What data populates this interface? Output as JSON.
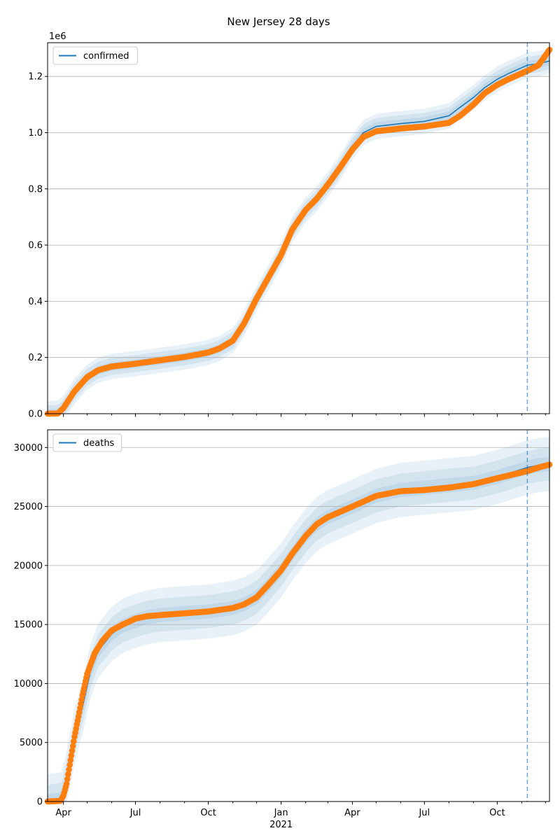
{
  "figure": {
    "title": "New Jersey 28 days"
  },
  "colors": {
    "model": "#1f77b4",
    "observed": "#ff7f0e",
    "band": "#1f77b4",
    "grid": "#b0b0b0",
    "vline": "#1f77b4"
  },
  "x_axis": {
    "domain": [
      "2020-03-12",
      "2021-12-06"
    ],
    "ticks": [
      {
        "date": "2020-04-01",
        "label": "Apr"
      },
      {
        "date": "2020-07-01",
        "label": "Jul"
      },
      {
        "date": "2020-10-01",
        "label": "Oct"
      },
      {
        "date": "2021-01-01",
        "label": "Jan"
      },
      {
        "date": "2021-04-01",
        "label": "Apr"
      },
      {
        "date": "2021-07-01",
        "label": "Jul"
      },
      {
        "date": "2021-10-01",
        "label": "Oct"
      }
    ],
    "minor_ticks": [
      "2020-05-01",
      "2020-06-01",
      "2020-08-01",
      "2020-09-01",
      "2020-11-01",
      "2020-12-01",
      "2021-02-01",
      "2021-03-01",
      "2021-05-01",
      "2021-06-01",
      "2021-08-01",
      "2021-09-01",
      "2021-11-01",
      "2021-12-01"
    ],
    "year_label": "2021",
    "forecast_start": "2021-11-08"
  },
  "chart_data": [
    {
      "type": "line",
      "legend": "confirmed",
      "legend_position": "top-left",
      "grid": "horizontal",
      "scale_label": "1e6",
      "ylim": [
        0,
        1.32
      ],
      "yticks": [
        0,
        0.2,
        0.4,
        0.6,
        0.8,
        1.0,
        1.2
      ],
      "ytick_labels": [
        "0.0",
        "0.2",
        "0.4",
        "0.6",
        "0.8",
        "1.0",
        "1.2"
      ],
      "band_widths": [
        0.015,
        0.03,
        0.045
      ],
      "model": {
        "x": [
          "2020-03-12",
          "2020-03-25",
          "2020-04-01",
          "2020-04-15",
          "2020-05-01",
          "2020-05-15",
          "2020-06-01",
          "2020-07-01",
          "2020-08-01",
          "2020-09-01",
          "2020-10-01",
          "2020-10-15",
          "2020-11-01",
          "2020-11-15",
          "2020-12-01",
          "2020-12-15",
          "2021-01-01",
          "2021-01-15",
          "2021-02-01",
          "2021-02-15",
          "2021-03-01",
          "2021-03-15",
          "2021-04-01",
          "2021-04-15",
          "2021-05-01",
          "2021-06-01",
          "2021-07-01",
          "2021-08-01",
          "2021-08-15",
          "2021-09-01",
          "2021-09-15",
          "2021-10-01",
          "2021-10-15",
          "2021-11-08",
          "2021-11-22",
          "2021-12-06"
        ],
        "y": [
          0,
          0.001,
          0.02,
          0.08,
          0.13,
          0.155,
          0.168,
          0.178,
          0.19,
          0.202,
          0.218,
          0.232,
          0.26,
          0.32,
          0.41,
          0.48,
          0.565,
          0.655,
          0.725,
          0.765,
          0.815,
          0.87,
          0.95,
          1.0,
          1.022,
          1.032,
          1.04,
          1.06,
          1.09,
          1.125,
          1.16,
          1.19,
          1.21,
          1.24,
          1.245,
          1.255
        ]
      },
      "observed": {
        "x": [
          "2020-03-12",
          "2020-03-25",
          "2020-04-01",
          "2020-04-15",
          "2020-05-01",
          "2020-05-15",
          "2020-06-01",
          "2020-07-01",
          "2020-08-01",
          "2020-09-01",
          "2020-10-01",
          "2020-10-15",
          "2020-11-01",
          "2020-11-15",
          "2020-12-01",
          "2020-12-15",
          "2021-01-01",
          "2021-01-15",
          "2021-02-01",
          "2021-02-15",
          "2021-03-01",
          "2021-03-15",
          "2021-04-01",
          "2021-04-15",
          "2021-05-01",
          "2021-06-01",
          "2021-07-01",
          "2021-08-01",
          "2021-08-15",
          "2021-09-01",
          "2021-09-15",
          "2021-10-01",
          "2021-10-15",
          "2021-11-08",
          "2021-11-22",
          "2021-12-01",
          "2021-12-06"
        ],
        "y": [
          0,
          0.001,
          0.02,
          0.08,
          0.13,
          0.155,
          0.168,
          0.178,
          0.19,
          0.202,
          0.218,
          0.232,
          0.26,
          0.32,
          0.41,
          0.48,
          0.565,
          0.655,
          0.725,
          0.765,
          0.815,
          0.87,
          0.94,
          0.985,
          1.005,
          1.015,
          1.022,
          1.035,
          1.06,
          1.1,
          1.14,
          1.17,
          1.19,
          1.22,
          1.24,
          1.275,
          1.295
        ]
      }
    },
    {
      "type": "line",
      "legend": "deaths",
      "legend_position": "top-left",
      "grid": "horizontal",
      "ylim": [
        0,
        31500
      ],
      "yticks": [
        0,
        5000,
        10000,
        15000,
        20000,
        25000,
        30000
      ],
      "ytick_labels": [
        "0",
        "5000",
        "10000",
        "15000",
        "20000",
        "25000",
        "30000"
      ],
      "band_widths": [
        600,
        1400,
        2300
      ],
      "model": {
        "x": [
          "2020-03-12",
          "2020-03-30",
          "2020-04-05",
          "2020-04-15",
          "2020-04-25",
          "2020-05-05",
          "2020-05-15",
          "2020-06-01",
          "2020-06-15",
          "2020-07-01",
          "2020-07-15",
          "2020-08-01",
          "2020-09-01",
          "2020-10-01",
          "2020-11-01",
          "2020-11-15",
          "2020-12-01",
          "2020-12-15",
          "2021-01-01",
          "2021-01-15",
          "2021-02-01",
          "2021-02-15",
          "2021-03-01",
          "2021-04-01",
          "2021-05-01",
          "2021-06-01",
          "2021-07-01",
          "2021-08-01",
          "2021-09-01",
          "2021-10-01",
          "2021-11-08",
          "2021-11-22",
          "2021-12-06"
        ],
        "y": [
          0,
          200,
          2000,
          5500,
          8000,
          11000,
          12800,
          14200,
          14900,
          15300,
          15600,
          15800,
          15950,
          16100,
          16400,
          16700,
          17300,
          18300,
          19600,
          21000,
          22500,
          23500,
          24100,
          25000,
          25900,
          26400,
          26600,
          26800,
          27000,
          27500,
          28300,
          28500,
          28600
        ]
      },
      "observed": {
        "x": [
          "2020-03-12",
          "2020-03-28",
          "2020-04-01",
          "2020-04-05",
          "2020-04-10",
          "2020-04-15",
          "2020-04-20",
          "2020-04-25",
          "2020-05-01",
          "2020-05-10",
          "2020-05-20",
          "2020-06-01",
          "2020-06-15",
          "2020-07-01",
          "2020-07-15",
          "2020-08-01",
          "2020-09-01",
          "2020-10-01",
          "2020-11-01",
          "2020-11-15",
          "2020-12-01",
          "2020-12-15",
          "2021-01-01",
          "2021-01-15",
          "2021-02-01",
          "2021-02-15",
          "2021-03-01",
          "2021-04-01",
          "2021-05-01",
          "2021-06-01",
          "2021-07-01",
          "2021-08-01",
          "2021-09-01",
          "2021-10-01",
          "2021-11-08",
          "2021-11-22",
          "2021-12-06"
        ],
        "y": [
          0,
          50,
          500,
          1500,
          3500,
          5500,
          7200,
          9000,
          10800,
          12500,
          13600,
          14500,
          15000,
          15500,
          15700,
          15800,
          15950,
          16100,
          16400,
          16700,
          17300,
          18300,
          19600,
          21000,
          22500,
          23500,
          24100,
          25000,
          25900,
          26300,
          26400,
          26600,
          26900,
          27400,
          28000,
          28300,
          28550
        ]
      }
    }
  ]
}
